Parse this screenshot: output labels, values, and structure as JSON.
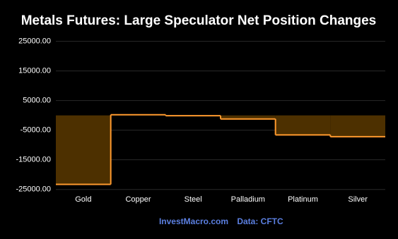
{
  "chart_data": {
    "type": "step-area",
    "title": "Metals Futures: Large Speculator Net Position Changes",
    "categories": [
      "Gold",
      "Copper",
      "Steel",
      "Palladium",
      "Platinum",
      "Silver"
    ],
    "values": [
      -23300,
      200,
      -100,
      -1200,
      -6600,
      -7200
    ],
    "color": "#ff9a2e",
    "fill": "#4d3000",
    "ylim": [
      -26500,
      28000
    ],
    "yticks": [
      {
        "value": 25000,
        "label": "25000.00"
      },
      {
        "value": 15000,
        "label": "15000.00"
      },
      {
        "value": 5000,
        "label": "5000.00"
      },
      {
        "value": -5000,
        "label": "-5000.00"
      },
      {
        "value": -15000,
        "label": "-15000.00"
      },
      {
        "value": -25000,
        "label": "-25000.00"
      }
    ],
    "grid": true,
    "footer": [
      "InvestMacro.com",
      "Data: CFTC"
    ]
  }
}
